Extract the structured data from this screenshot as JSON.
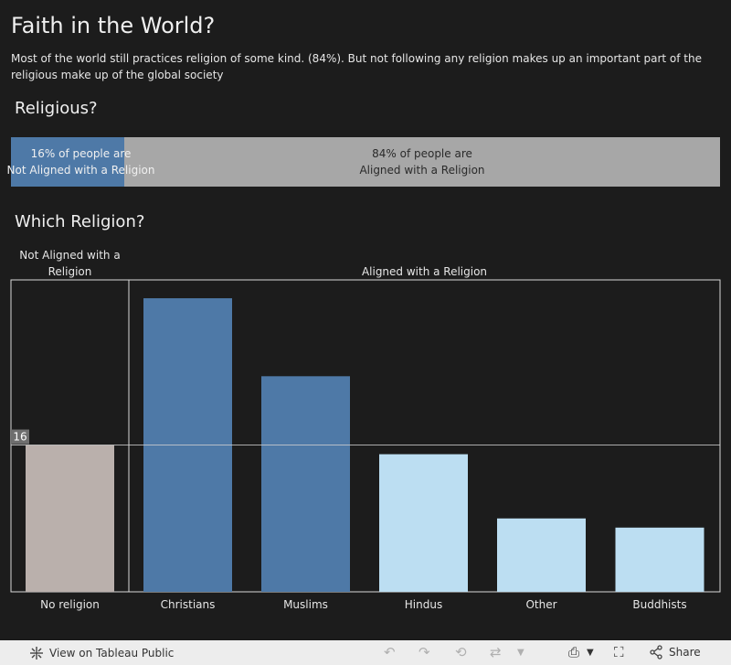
{
  "header": {
    "title": "Faith in the World?",
    "subtitle": "Most of the world still practices religion of some kind. (84%). But not following any religion makes up an important part of the religious make up of the global society"
  },
  "religious_section": {
    "title": "Religious?",
    "not_aligned_line1": "16% of people are",
    "not_aligned_line2": "Not Aligned with a Religion",
    "aligned_line1": "84% of people are",
    "aligned_line2": "Aligned with a Religion"
  },
  "which_section": {
    "title": "Which Religion?",
    "group_not_aligned": "Not Aligned with a Religion",
    "group_aligned": "Aligned with a Religion"
  },
  "colors": {
    "background": "#1c1c1c",
    "not_aligned_bar": "#4e79a7",
    "aligned_bar": "#a7a7a7",
    "no_religion": "#bab0ac",
    "dark_blue": "#4e79a7",
    "light_blue": "#bcdef2"
  },
  "chart_data": [
    {
      "type": "bar",
      "orientation": "horizontal-stacked",
      "title": "Religious?",
      "categories": [
        "Not Aligned with a Religion",
        "Aligned with a Religion"
      ],
      "values": [
        16,
        84
      ],
      "unit": "%"
    },
    {
      "type": "bar",
      "title": "Which Religion?",
      "groups": [
        {
          "name": "Not Aligned with a Religion",
          "categories": [
            "No religion"
          ]
        },
        {
          "name": "Aligned with a Religion",
          "categories": [
            "Christians",
            "Muslims",
            "Hindus",
            "Other",
            "Buddhists"
          ]
        }
      ],
      "categories": [
        "No religion",
        "Christians",
        "Muslims",
        "Hindus",
        "Other",
        "Buddhists"
      ],
      "values": [
        16,
        32,
        23.5,
        15,
        8,
        7
      ],
      "colors": [
        "#bab0ac",
        "#4e79a7",
        "#4e79a7",
        "#bcdef2",
        "#bcdef2",
        "#bcdef2"
      ],
      "reference_line": {
        "value": 16,
        "label": "16"
      },
      "ylim": [
        0,
        34
      ]
    }
  ],
  "footer": {
    "view_label": "View on Tableau Public",
    "share_label": "Share"
  }
}
